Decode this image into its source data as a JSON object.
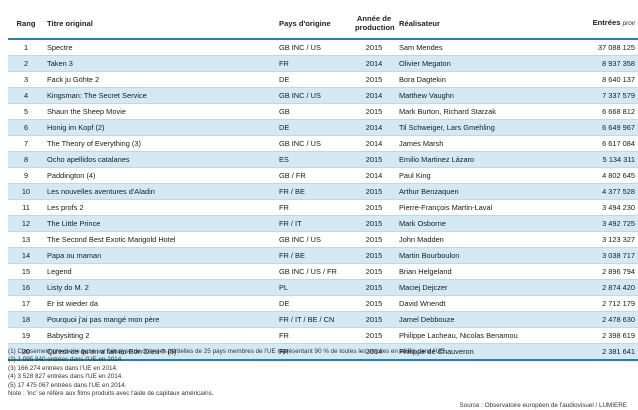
{
  "headers": {
    "rang": "Rang",
    "titre": "Titre original",
    "pays": "Pays d'origine",
    "annee_line1": "Année de",
    "annee_line2": "production",
    "realisateur": "Réalisateur",
    "entrees": "Entrées",
    "entrees_prov": "prov"
  },
  "rows": [
    {
      "rang": "1",
      "titre": "Spectre",
      "pays": "GB INC / US",
      "annee": "2015",
      "realisateur": "Sam Mendes",
      "entrees": "37 088 125"
    },
    {
      "rang": "2",
      "titre": "Taken 3",
      "pays": "FR",
      "annee": "2014",
      "realisateur": "Olivier Megaton",
      "entrees": "8 937 358"
    },
    {
      "rang": "3",
      "titre": "Fack ju Göhte 2",
      "pays": "DE",
      "annee": "2015",
      "realisateur": "Bora Dagtekin",
      "entrees": "8 640 137"
    },
    {
      "rang": "4",
      "titre": "Kingsman: The Secret Service",
      "pays": "GB INC / US",
      "annee": "2014",
      "realisateur": "Matthew Vaughn",
      "entrees": "7 337 579"
    },
    {
      "rang": "5",
      "titre": "Shaun the Sheep Movie",
      "pays": "GB",
      "annee": "2015",
      "realisateur": "Mark Burton, Richard Starzak",
      "entrees": "6 668 812"
    },
    {
      "rang": "6",
      "titre": "Honig im Kopf (2)",
      "pays": "DE",
      "annee": "2014",
      "realisateur": "Til Schweiger, Lars Gmehling",
      "entrees": "6 649 967"
    },
    {
      "rang": "7",
      "titre": "The Theory of Everything (3)",
      "pays": "GB INC / US",
      "annee": "2014",
      "realisateur": "James Marsh",
      "entrees": "6 617 084"
    },
    {
      "rang": "8",
      "titre": "Ocho apellidos catalanes",
      "pays": "ES",
      "annee": "2015",
      "realisateur": "Emilio Martinez Lázaro",
      "entrees": "5 134 311"
    },
    {
      "rang": "9",
      "titre": "Paddington (4)",
      "pays": "GB / FR",
      "annee": "2014",
      "realisateur": "Paul King",
      "entrees": "4 802 645"
    },
    {
      "rang": "10",
      "titre": "Les nouvelles aventures d'Aladin",
      "pays": "FR / BE",
      "annee": "2015",
      "realisateur": "Arthur Benzaquen",
      "entrees": "4 377 528"
    },
    {
      "rang": "11",
      "titre": "Les profs 2",
      "pays": "FR",
      "annee": "2015",
      "realisateur": "Pierre-François Martin-Laval",
      "entrees": "3 494 230"
    },
    {
      "rang": "12",
      "titre": "The Little Prince",
      "pays": "FR / IT",
      "annee": "2015",
      "realisateur": "Mark Osborne",
      "entrees": "3 492 725"
    },
    {
      "rang": "13",
      "titre": "The Second Best Exotic Marigold Hotel",
      "pays": "GB INC / US",
      "annee": "2015",
      "realisateur": "John Madden",
      "entrees": "3 123 327"
    },
    {
      "rang": "14",
      "titre": "Papa ou maman",
      "pays": "FR / BE",
      "annee": "2015",
      "realisateur": "Martin Bourboulon",
      "entrees": "3 038 717"
    },
    {
      "rang": "15",
      "titre": "Legend",
      "pays": "GB INC / US / FR",
      "annee": "2015",
      "realisateur": "Brian Helgeland",
      "entrees": "2 896 794"
    },
    {
      "rang": "16",
      "titre": "Listy do M. 2",
      "pays": "PL",
      "annee": "2015",
      "realisateur": "Maciej Dejczer",
      "entrees": "2 874 420"
    },
    {
      "rang": "17",
      "titre": "Er ist wieder da",
      "pays": "DE",
      "annee": "2015",
      "realisateur": "David Wnendt",
      "entrees": "2 712 179"
    },
    {
      "rang": "18",
      "titre": "Pourquoi j'ai pas mangé mon père",
      "pays": "FR / IT / BE / CN",
      "annee": "2015",
      "realisateur": "Jamel Debbouze",
      "entrees": "2 478 630"
    },
    {
      "rang": "19",
      "titre": "Babysitting 2",
      "pays": "FR",
      "annee": "2015",
      "realisateur": "Philippe Lacheau, Nicolas Benamou",
      "entrees": "2 398 619"
    },
    {
      "rang": "20",
      "titre": "Qu'est-ce qu'on a fait au Bon Dieu ? (5)",
      "pays": "FR",
      "annee": "2014",
      "realisateur": "Philippe de Chauveron",
      "entrees": "2 381 641"
    }
  ],
  "notes": [
    "(1)  Classement provisoire basé sur l'analyse de données partielles de 25 pays membres de l'UE représentant 90 % de toutes les entrées en salles dans l'UE.",
    "(2) 1 095 840 entrées dans l'UE en 2014.",
    "(3) 166 274 entrées dans l'UE en 2014.",
    "(4) 3 528 827 entrées dans l'UE en 2014.",
    "(5) 17 475 067 entrées dans l'UE en 2014.",
    "Note : 'inc' se réfère aux films produits avec l'aide de capitaux américains."
  ],
  "source": "Source : Observatoire européen de l'audiovisuel / LUMIERE"
}
